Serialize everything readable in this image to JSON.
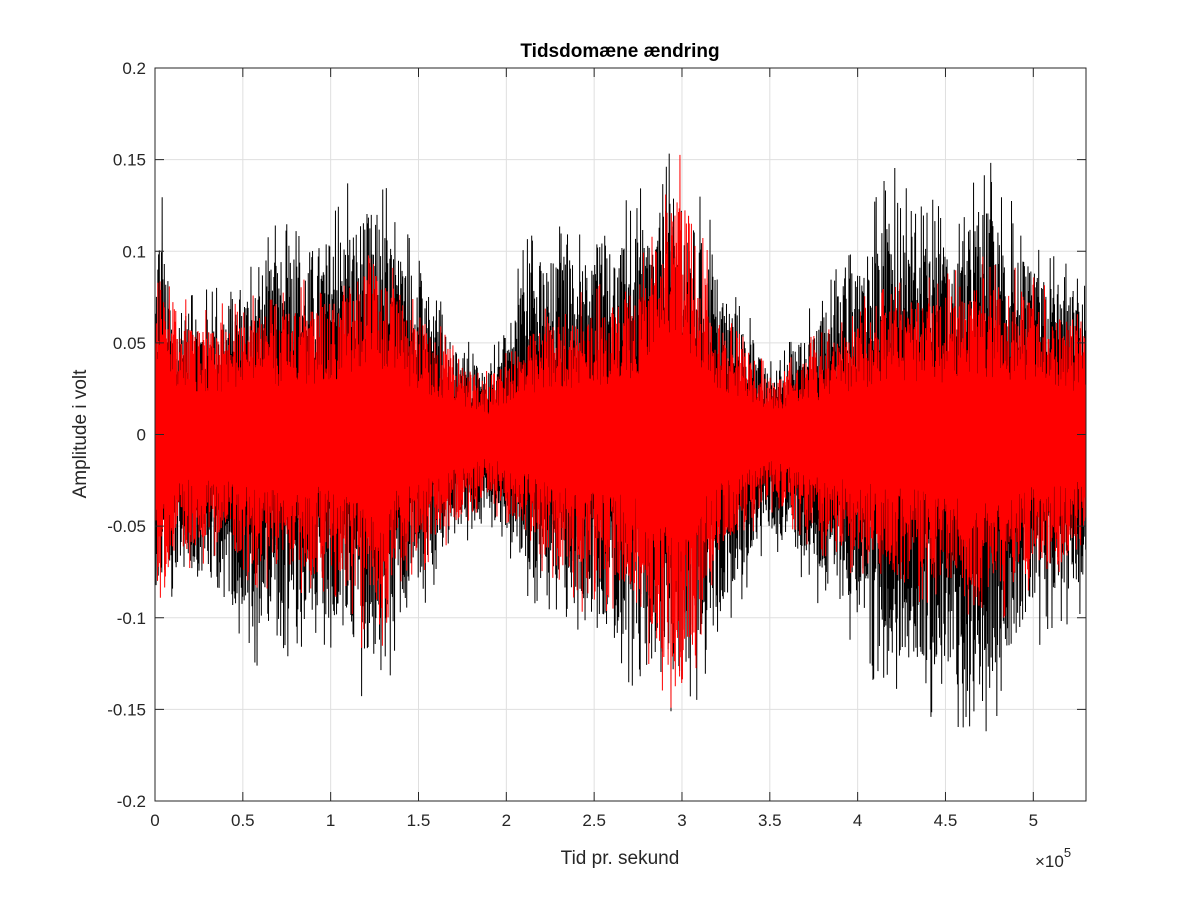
{
  "chart_data": {
    "type": "line",
    "title": "Tidsdomæne ændring",
    "xlabel": "Tid pr. sekund",
    "ylabel": "Amplitude i volt",
    "xlim": [
      0,
      530000
    ],
    "ylim": [
      -0.2,
      0.2
    ],
    "x_exponent_label": "×10",
    "x_exponent_power": "5",
    "x_ticks": [
      0,
      50000,
      100000,
      150000,
      200000,
      250000,
      300000,
      350000,
      400000,
      450000,
      500000
    ],
    "x_tick_labels": [
      "0",
      "0.5",
      "1",
      "1.5",
      "2",
      "2.5",
      "3",
      "3.5",
      "4",
      "4.5",
      "5"
    ],
    "y_ticks": [
      -0.2,
      -0.15,
      -0.1,
      -0.05,
      0,
      0.05,
      0.1,
      0.15,
      0.2
    ],
    "y_tick_labels": [
      "-0.2",
      "-0.15",
      "-0.1",
      "-0.05",
      "0",
      "0.05",
      "0.1",
      "0.15",
      "0.2"
    ],
    "grid": true,
    "series": [
      {
        "color": "#000000",
        "envelope_x": [
          0,
          2000,
          10000,
          30000,
          60000,
          100000,
          125000,
          140000,
          170000,
          190000,
          215000,
          240000,
          270000,
          298000,
          320000,
          350000,
          380000,
          420000,
          455000,
          470000,
          500000,
          530000
        ],
        "envelope_max": [
          0.1,
          0.15,
          0.085,
          0.08,
          0.11,
          0.135,
          0.155,
          0.12,
          0.06,
          0.04,
          0.12,
          0.12,
          0.13,
          0.165,
          0.11,
          0.04,
          0.08,
          0.15,
          0.12,
          0.16,
          0.11,
          0.09
        ],
        "envelope_min": [
          -0.1,
          -0.11,
          -0.09,
          -0.1,
          -0.13,
          -0.12,
          -0.155,
          -0.12,
          -0.065,
          -0.05,
          -0.1,
          -0.11,
          -0.14,
          -0.175,
          -0.12,
          -0.06,
          -0.1,
          -0.15,
          -0.16,
          -0.175,
          -0.12,
          -0.1
        ]
      },
      {
        "color": "#ff0000",
        "envelope_x": [
          0,
          2000,
          10000,
          30000,
          60000,
          100000,
          125000,
          140000,
          170000,
          190000,
          215000,
          240000,
          270000,
          298000,
          320000,
          350000,
          380000,
          420000,
          455000,
          470000,
          500000,
          530000
        ],
        "envelope_max": [
          0.09,
          0.11,
          0.08,
          0.07,
          0.08,
          0.09,
          0.12,
          0.09,
          0.05,
          0.035,
          0.07,
          0.08,
          0.09,
          0.165,
          0.08,
          0.035,
          0.06,
          0.09,
          0.09,
          0.1,
          0.09,
          0.07
        ],
        "envelope_min": [
          -0.08,
          -0.12,
          -0.08,
          -0.07,
          -0.09,
          -0.09,
          -0.135,
          -0.09,
          -0.06,
          -0.04,
          -0.07,
          -0.1,
          -0.1,
          -0.178,
          -0.08,
          -0.045,
          -0.07,
          -0.09,
          -0.1,
          -0.11,
          -0.09,
          -0.08
        ]
      }
    ]
  }
}
